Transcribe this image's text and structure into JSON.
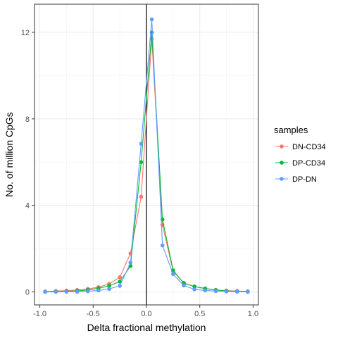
{
  "chart_data": {
    "type": "line",
    "title": "",
    "xlabel": "Delta fractional methylation",
    "ylabel": "No. of million CpGs",
    "xlim": [
      -1.05,
      1.05
    ],
    "ylim": [
      -0.6,
      13.3
    ],
    "xticks": [
      -1.0,
      -0.5,
      0.0,
      0.5,
      1.0
    ],
    "xtick_labels": [
      "-1.0",
      "-0.5",
      "0.0",
      "0.5",
      "1.0"
    ],
    "yticks": [
      0,
      4,
      8,
      12
    ],
    "ytick_labels": [
      "0",
      "4",
      "8",
      "12"
    ],
    "grid": true,
    "vline_x": 0,
    "legend_title": "samples",
    "legend_position": "right",
    "x": [
      -0.95,
      -0.85,
      -0.75,
      -0.65,
      -0.55,
      -0.45,
      -0.35,
      -0.25,
      -0.15,
      -0.05,
      0.05,
      0.15,
      0.25,
      0.35,
      0.45,
      0.55,
      0.65,
      0.75,
      0.85,
      0.95
    ],
    "series": [
      {
        "name": "DN-CD34",
        "color": "#F8766D",
        "values": [
          0.02,
          0.04,
          0.06,
          0.09,
          0.14,
          0.22,
          0.37,
          0.68,
          1.78,
          4.4,
          11.7,
          3.1,
          0.95,
          0.42,
          0.25,
          0.15,
          0.09,
          0.06,
          0.04,
          0.02
        ]
      },
      {
        "name": "DP-CD34",
        "color": "#00BA38",
        "values": [
          0.01,
          0.02,
          0.03,
          0.05,
          0.09,
          0.17,
          0.28,
          0.48,
          1.2,
          6.0,
          12.0,
          3.35,
          1.0,
          0.4,
          0.25,
          0.16,
          0.09,
          0.05,
          0.03,
          0.02
        ]
      },
      {
        "name": "DP-DN",
        "color": "#619CFF",
        "values": [
          0.0,
          0.0,
          0.01,
          0.01,
          0.03,
          0.07,
          0.14,
          0.28,
          1.35,
          6.85,
          12.6,
          2.15,
          0.82,
          0.3,
          0.12,
          0.07,
          0.04,
          0.02,
          0.01,
          0.0
        ]
      }
    ]
  }
}
